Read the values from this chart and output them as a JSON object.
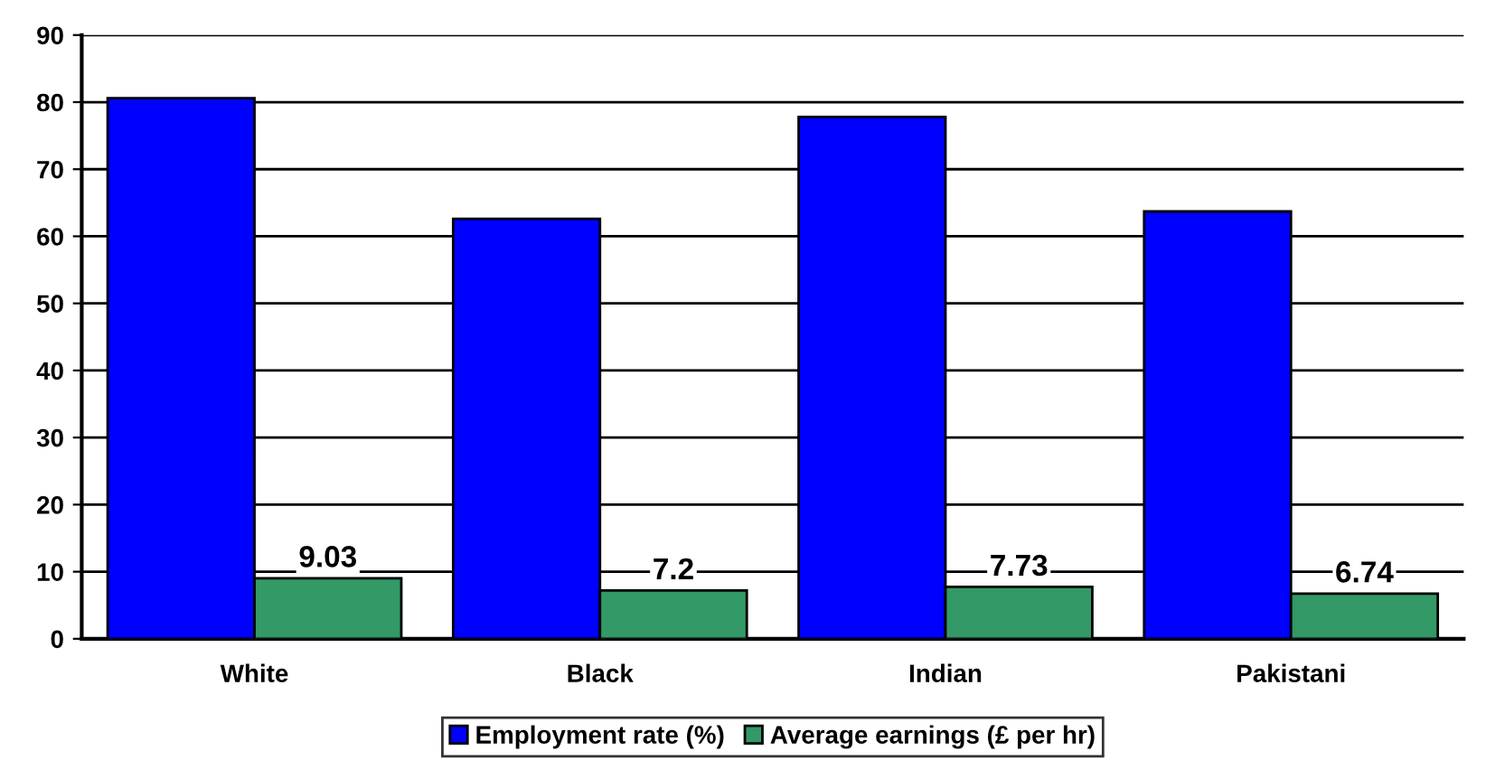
{
  "chart_data": {
    "type": "bar",
    "categories": [
      "White",
      "Black",
      "Indian",
      "Pakistani"
    ],
    "series": [
      {
        "name": "Employment rate (%)",
        "color": "#0000ff",
        "values": [
          80.6,
          62.6,
          77.8,
          63.7
        ]
      },
      {
        "name": "Average earnings (£ per hr)",
        "color": "#339966",
        "values": [
          9.03,
          7.2,
          7.73,
          6.74
        ],
        "value_labels": [
          "9.03",
          "7.2",
          "7.73",
          "6.74"
        ]
      }
    ],
    "ylim": [
      0,
      90
    ],
    "yticks": [
      0,
      10,
      20,
      30,
      40,
      50,
      60,
      70,
      80,
      90
    ],
    "grid": "y",
    "legend": "bottom"
  }
}
